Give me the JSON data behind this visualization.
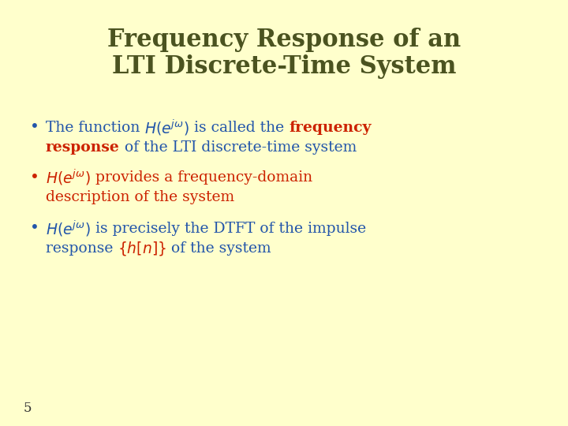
{
  "background_color": "#FFFFCC",
  "title_line1": "Frequency Response of an",
  "title_line2": "LTI Discrete-Time System",
  "title_color": "#4B5320",
  "title_fontsize": 22,
  "bullet_fontsize": 13.5,
  "math_fontsize": 13.5,
  "bullet_color_blue": "#2255AA",
  "bullet_color_red": "#CC2200",
  "page_number": "5",
  "page_number_color": "#333333",
  "page_number_fontsize": 12
}
